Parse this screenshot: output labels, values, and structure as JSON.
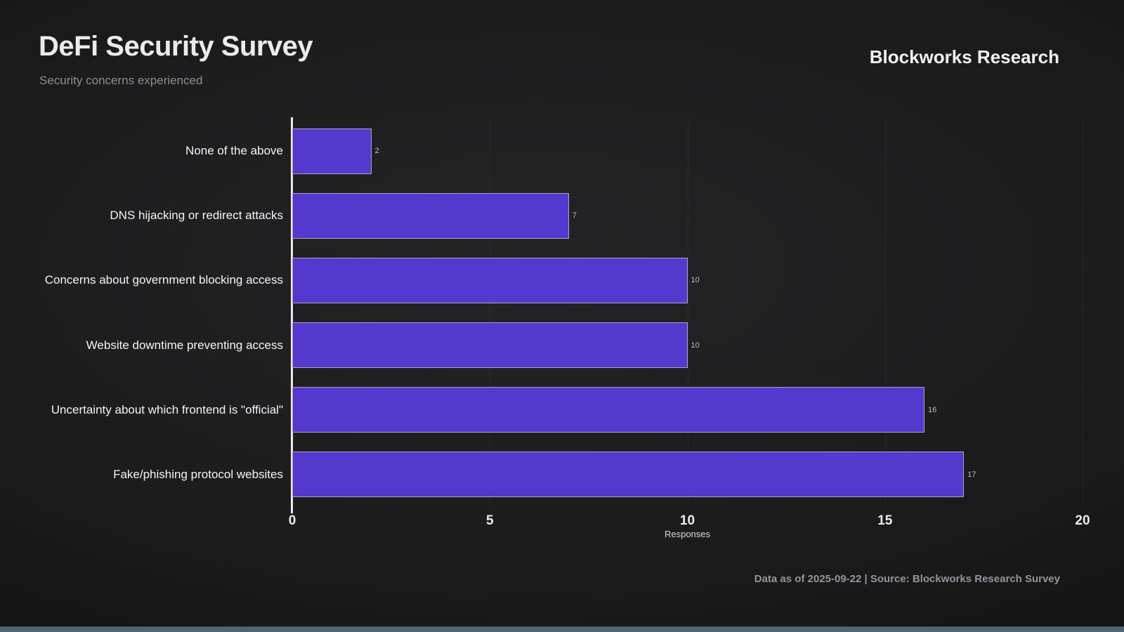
{
  "header": {
    "title": "DeFi Security Survey",
    "subtitle": "Security concerns experienced",
    "brand": "Blockworks Research"
  },
  "footer": {
    "text": "Data as of 2025-09-22 | Source: Blockworks Research Survey"
  },
  "colors": {
    "bar_fill": "#5538ce",
    "bar_edge": "#bab8c4",
    "background": "#1d1d1e",
    "bottom_accent": "#4d6873",
    "axis": "#eaeaea"
  },
  "chart_data": {
    "type": "bar",
    "orientation": "horizontal",
    "title": "DeFi Security Survey",
    "subtitle": "Security concerns experienced",
    "categories": [
      "None of the above",
      "DNS hijacking or redirect attacks",
      "Concerns about government blocking access",
      "Website downtime preventing access",
      "Uncertainty about which frontend is \"official\"",
      "Fake/phishing protocol websites"
    ],
    "values": [
      2,
      7,
      10,
      10,
      16,
      17
    ],
    "value_labels": [
      "2",
      "7",
      "10",
      "10",
      "16",
      "17"
    ],
    "xlabel": "Responses",
    "ylabel": "",
    "xlim": [
      0,
      20
    ],
    "xticks": [
      0,
      5,
      10,
      15,
      20
    ],
    "grid": true,
    "legend": false
  }
}
